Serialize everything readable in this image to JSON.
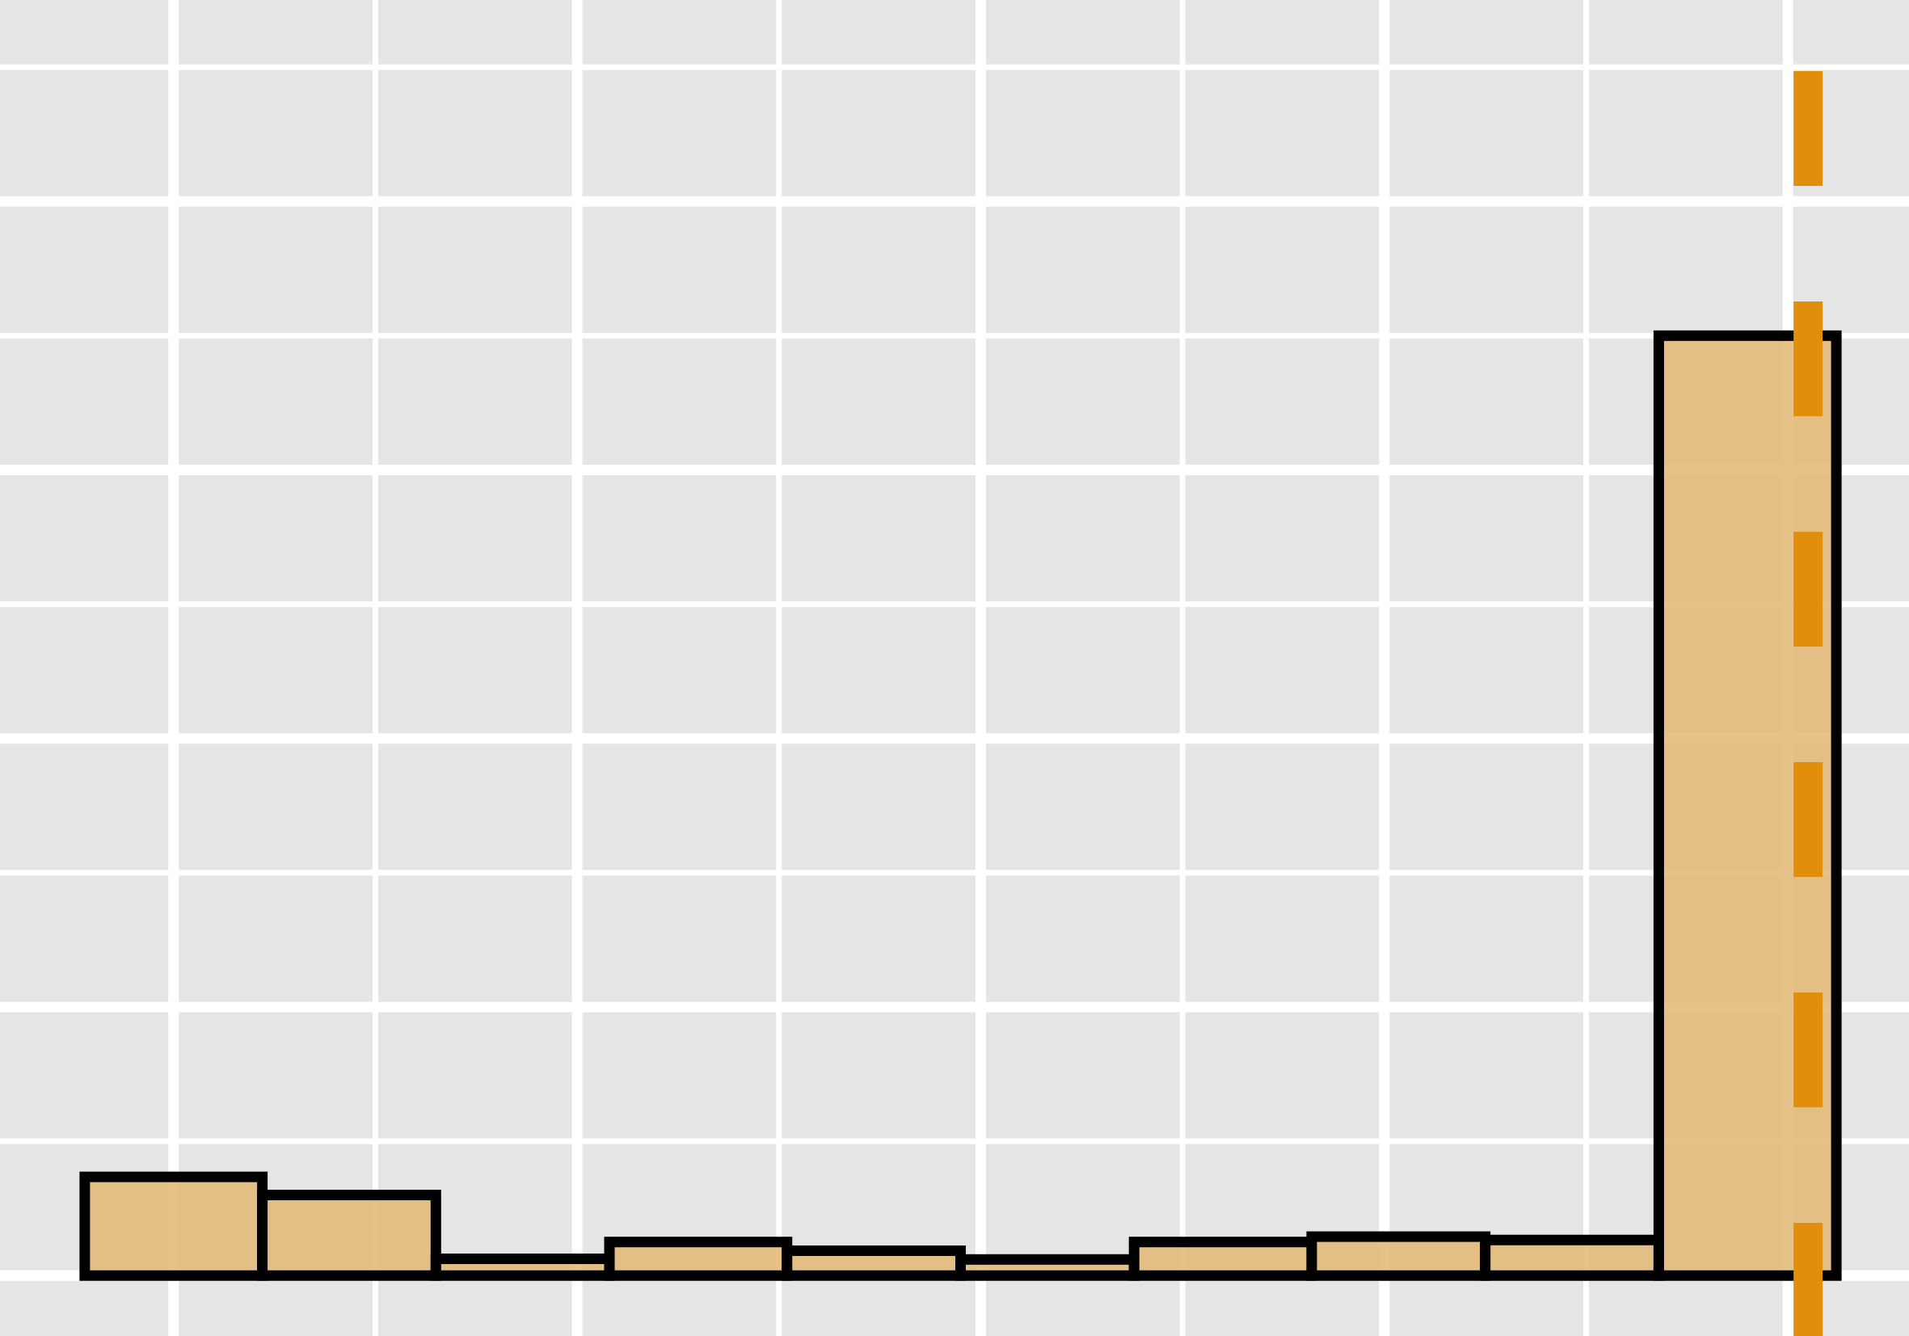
{
  "chart_data": {
    "type": "bar",
    "title": "",
    "xlabel": "",
    "ylabel": "",
    "bins": [
      {
        "x0": -0.22,
        "x1": 0.22,
        "count": 1.47
      },
      {
        "x0": 0.22,
        "x1": 0.65,
        "count": 1.2
      },
      {
        "x0": 0.65,
        "x1": 1.08,
        "count": 0.25
      },
      {
        "x0": 1.08,
        "x1": 1.52,
        "count": 0.5
      },
      {
        "x0": 1.52,
        "x1": 1.95,
        "count": 0.37
      },
      {
        "x0": 1.95,
        "x1": 2.38,
        "count": 0.24
      },
      {
        "x0": 2.38,
        "x1": 2.82,
        "count": 0.5
      },
      {
        "x0": 2.82,
        "x1": 3.25,
        "count": 0.58
      },
      {
        "x0": 3.25,
        "x1": 3.68,
        "count": 0.53
      },
      {
        "x0": 3.68,
        "x1": 4.12,
        "count": 14.0
      }
    ],
    "reference_line": {
      "x": 4.05,
      "style": "dashed"
    },
    "xlim": [
      -0.43,
      4.3
    ],
    "ylim": [
      -0.9,
      19.0
    ],
    "x_gridlines_major": [
      0.0,
      1.0,
      2.0,
      3.0,
      4.0
    ],
    "x_gridlines_minor": [
      0.5,
      1.5,
      2.5,
      3.5
    ],
    "y_gridlines_major": [
      0.0,
      4.0,
      8.0,
      12.0,
      16.0
    ],
    "y_gridlines_minor": [
      2.0,
      6.0,
      10.0,
      14.0,
      18.0
    ],
    "grid": true,
    "legend": "none",
    "colors": {
      "panel_background": "#E5E5E5",
      "grid": "#FFFFFF",
      "bar_fill": "#E3BA79",
      "bar_outline": "#000000",
      "reference_line": "#E08E0B"
    }
  }
}
